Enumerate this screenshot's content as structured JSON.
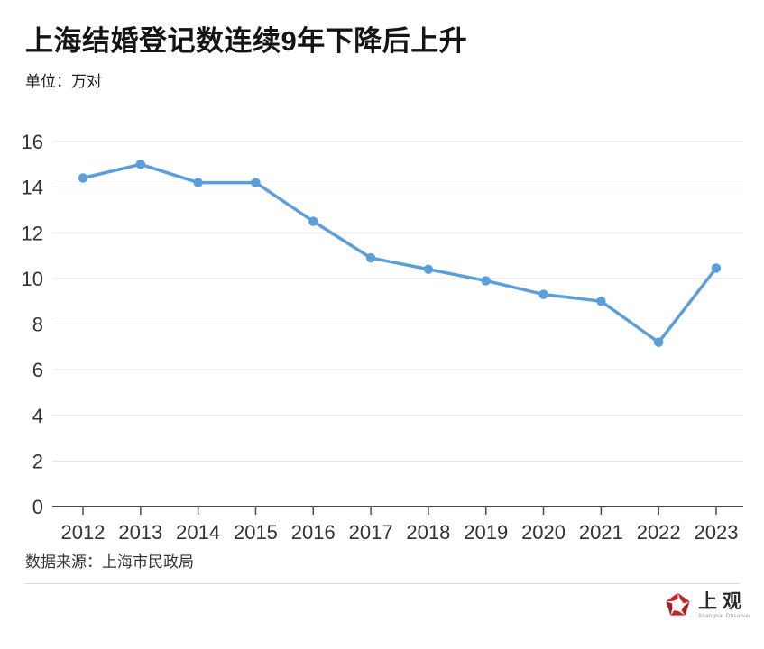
{
  "page": {
    "title": "上海结婚登记数连续9年下降后上升",
    "unit_label": "单位：万对",
    "source_label": "数据来源：上海市民政局"
  },
  "logo": {
    "name": "上观",
    "subtitle": "Shanghai Observer",
    "brand_color": "#c5242c"
  },
  "chart_data": {
    "type": "line",
    "title": "上海结婚登记数连续9年下降后上升",
    "unit": "万对",
    "categories": [
      "2012",
      "2013",
      "2014",
      "2015",
      "2016",
      "2017",
      "2018",
      "2019",
      "2020",
      "2021",
      "2022",
      "2023"
    ],
    "values": [
      14.4,
      15.0,
      14.2,
      14.2,
      12.5,
      10.9,
      10.4,
      9.9,
      9.3,
      9.0,
      7.2,
      10.45
    ],
    "xlabel": "",
    "ylabel": "",
    "ylim": [
      0,
      16
    ],
    "ytick_step": 2,
    "grid": true,
    "legend": "none",
    "line_color": "#5b9fda",
    "source": "上海市民政局"
  }
}
